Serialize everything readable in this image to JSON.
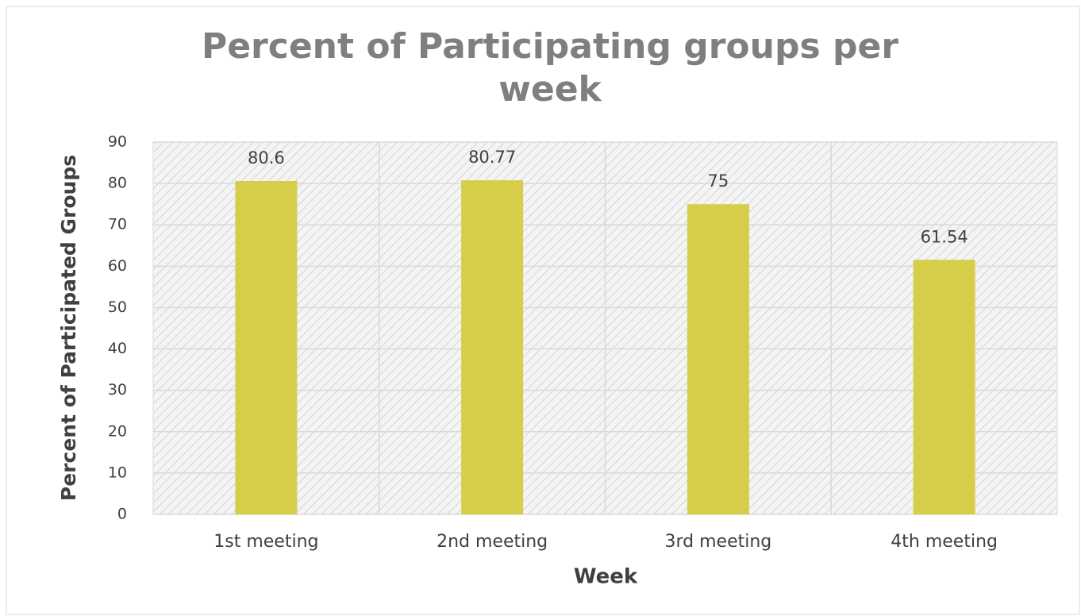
{
  "chart_data": {
    "type": "bar",
    "title": "Percent of Participating groups per week",
    "categories": [
      "1st meeting",
      "2nd meeting",
      "3rd meeting",
      "4th meeting"
    ],
    "values": [
      80.6,
      80.77,
      75,
      61.54
    ],
    "color": "#d6ce48",
    "xlabel": "Week",
    "ylabel": "Percent of Participated Groups",
    "ylim": [
      0,
      90
    ],
    "yticks": [
      0,
      10,
      20,
      30,
      40,
      50,
      60,
      70,
      80,
      90
    ],
    "grid": true
  }
}
